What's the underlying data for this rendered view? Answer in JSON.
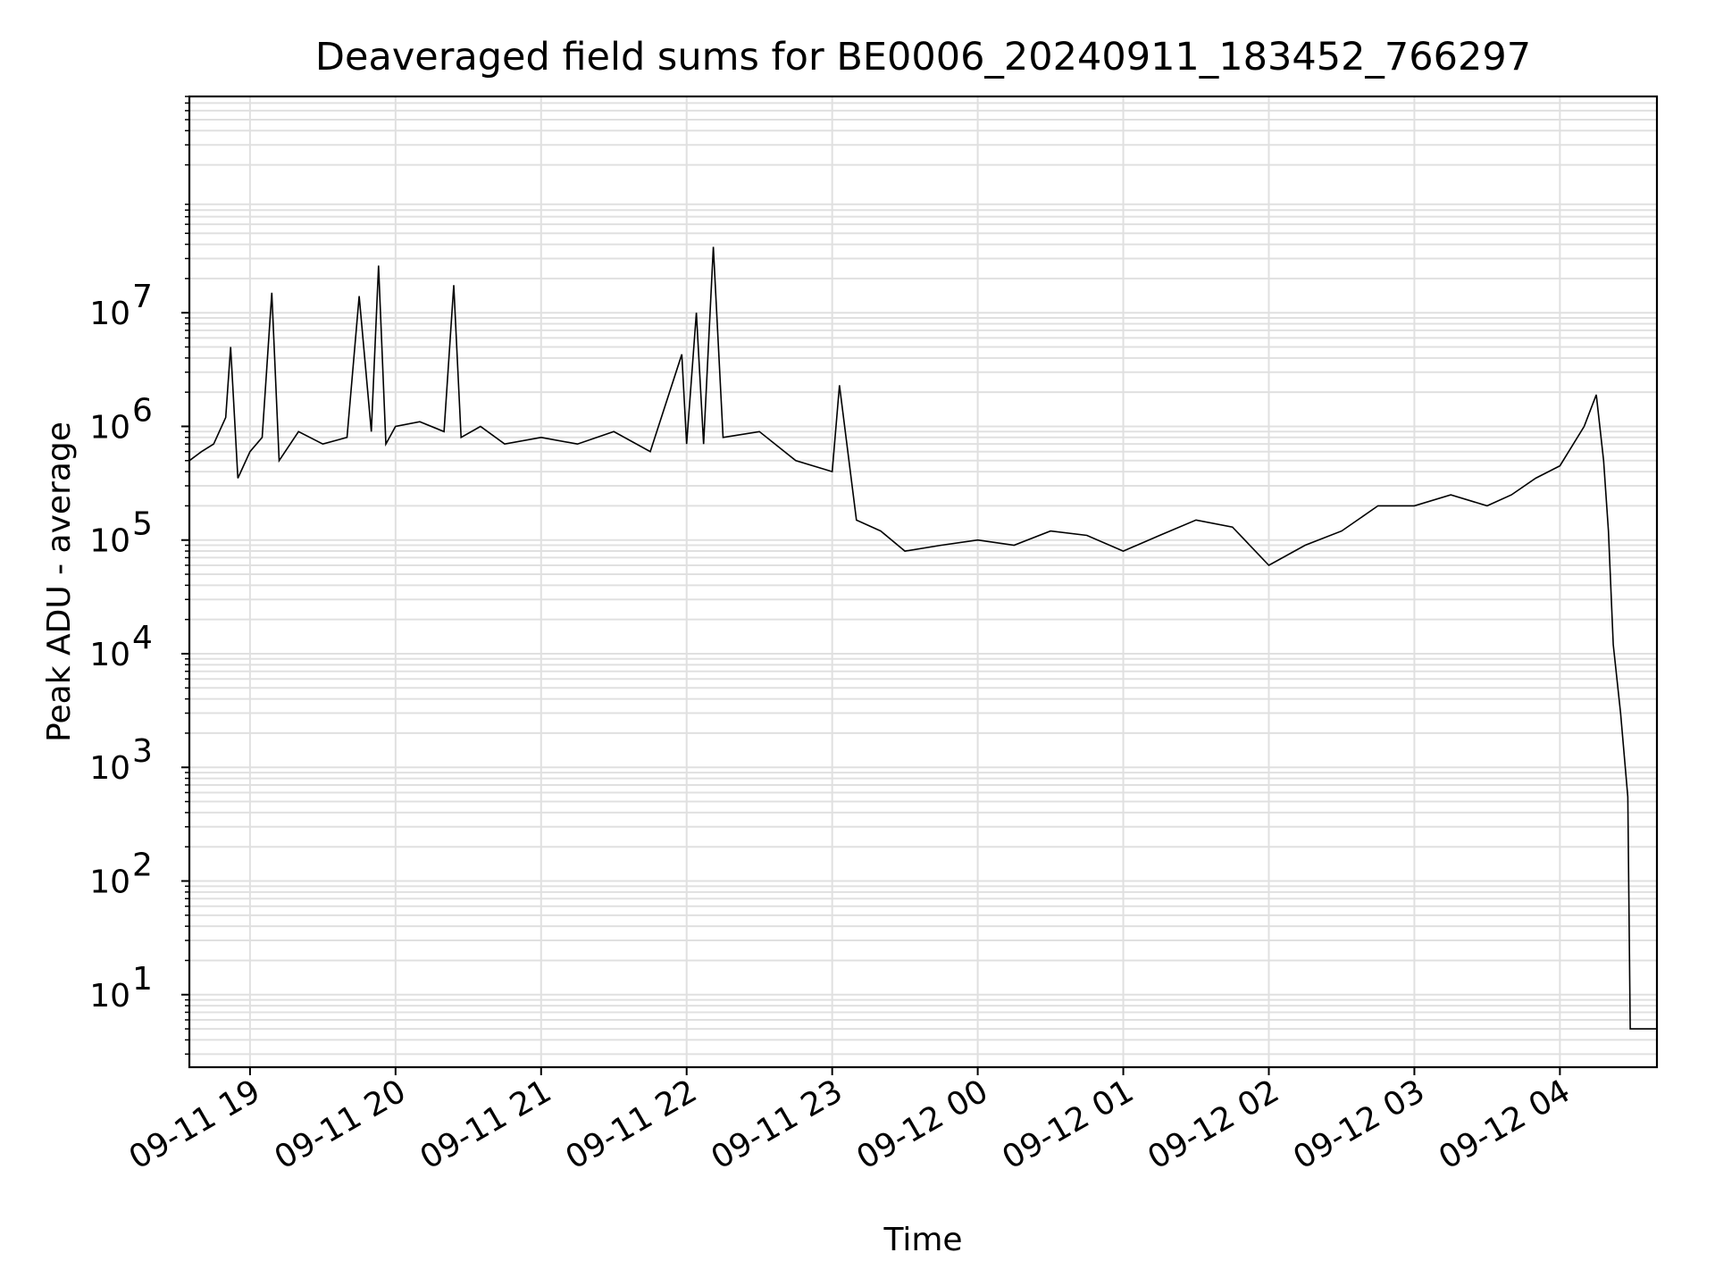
{
  "chart_data": {
    "type": "line",
    "title": "Deaveraged field sums for BE0006_20240911_183452_766297",
    "xlabel": "Time",
    "ylabel": "Peak ADU - average",
    "y_scale": "log",
    "ylim": [
      2.3,
      800000000
    ],
    "xlim": [
      "2024-09-11 18:35",
      "2024-09-12 04:40"
    ],
    "x_ticks": [
      {
        "value": "2024-09-11 19:00",
        "label": "09-11 19"
      },
      {
        "value": "2024-09-11 20:00",
        "label": "09-11 20"
      },
      {
        "value": "2024-09-11 21:00",
        "label": "09-11 21"
      },
      {
        "value": "2024-09-11 22:00",
        "label": "09-11 22"
      },
      {
        "value": "2024-09-11 23:00",
        "label": "09-11 23"
      },
      {
        "value": "2024-09-12 00:00",
        "label": "09-12 00"
      },
      {
        "value": "2024-09-12 01:00",
        "label": "09-12 01"
      },
      {
        "value": "2024-09-12 02:00",
        "label": "09-12 02"
      },
      {
        "value": "2024-09-12 03:00",
        "label": "09-12 03"
      },
      {
        "value": "2024-09-12 04:00",
        "label": "09-12 04"
      }
    ],
    "y_ticks": [
      {
        "value": 10,
        "base": "10",
        "exp": "1"
      },
      {
        "value": 100,
        "base": "10",
        "exp": "2"
      },
      {
        "value": 1000,
        "base": "10",
        "exp": "3"
      },
      {
        "value": 10000,
        "base": "10",
        "exp": "4"
      },
      {
        "value": 100000,
        "base": "10",
        "exp": "5"
      },
      {
        "value": 1000000,
        "base": "10",
        "exp": "6"
      },
      {
        "value": 10000000,
        "base": "10",
        "exp": "7"
      }
    ],
    "grid": true,
    "legend": "none",
    "series": [
      {
        "color": "#000000",
        "x": [
          "2024-09-11 18:35",
          "2024-09-11 18:40",
          "2024-09-11 18:45",
          "2024-09-11 18:50",
          "2024-09-11 18:52",
          "2024-09-11 18:55",
          "2024-09-11 19:00",
          "2024-09-11 19:05",
          "2024-09-11 19:09",
          "2024-09-11 19:12",
          "2024-09-11 19:20",
          "2024-09-11 19:30",
          "2024-09-11 19:40",
          "2024-09-11 19:45",
          "2024-09-11 19:50",
          "2024-09-11 19:53",
          "2024-09-11 19:56",
          "2024-09-11 20:00",
          "2024-09-11 20:10",
          "2024-09-11 20:20",
          "2024-09-11 20:24",
          "2024-09-11 20:27",
          "2024-09-11 20:35",
          "2024-09-11 20:45",
          "2024-09-11 21:00",
          "2024-09-11 21:15",
          "2024-09-11 21:30",
          "2024-09-11 21:45",
          "2024-09-11 21:58",
          "2024-09-11 22:00",
          "2024-09-11 22:04",
          "2024-09-11 22:07",
          "2024-09-11 22:11",
          "2024-09-11 22:15",
          "2024-09-11 22:30",
          "2024-09-11 22:45",
          "2024-09-11 23:00",
          "2024-09-11 23:03",
          "2024-09-11 23:10",
          "2024-09-11 23:20",
          "2024-09-11 23:30",
          "2024-09-11 23:45",
          "2024-09-12 00:00",
          "2024-09-12 00:15",
          "2024-09-12 00:30",
          "2024-09-12 00:45",
          "2024-09-12 01:00",
          "2024-09-12 01:15",
          "2024-09-12 01:30",
          "2024-09-12 01:45",
          "2024-09-12 02:00",
          "2024-09-12 02:15",
          "2024-09-12 02:30",
          "2024-09-12 02:45",
          "2024-09-12 03:00",
          "2024-09-12 03:15",
          "2024-09-12 03:30",
          "2024-09-12 03:40",
          "2024-09-12 03:50",
          "2024-09-12 04:00",
          "2024-09-12 04:10",
          "2024-09-12 04:15",
          "2024-09-12 04:18",
          "2024-09-12 04:20",
          "2024-09-12 04:22",
          "2024-09-12 04:25",
          "2024-09-12 04:28",
          "2024-09-12 04:29",
          "2024-09-12 04:30",
          "2024-09-12 04:31",
          "2024-09-12 04:40"
        ],
        "y": [
          500000,
          600000,
          700000,
          1200000,
          5000000,
          350000,
          600000,
          800000,
          15000000,
          500000,
          900000,
          700000,
          800000,
          14000000,
          900000,
          26000000,
          700000,
          1000000,
          1100000,
          900000,
          17500000,
          800000,
          1000000,
          700000,
          800000,
          700000,
          900000,
          600000,
          4300000,
          700000,
          10000000,
          700000,
          38000000,
          800000,
          900000,
          500000,
          400000,
          2300000,
          150000,
          120000,
          80000,
          90000,
          100000,
          90000,
          120000,
          110000,
          80000,
          110000,
          150000,
          130000,
          60000,
          90000,
          120000,
          200000,
          200000,
          250000,
          200000,
          250000,
          350000,
          450000,
          1000000,
          1900000,
          500000,
          120000,
          12000,
          3000,
          550,
          5,
          5,
          5,
          5
        ]
      }
    ]
  }
}
